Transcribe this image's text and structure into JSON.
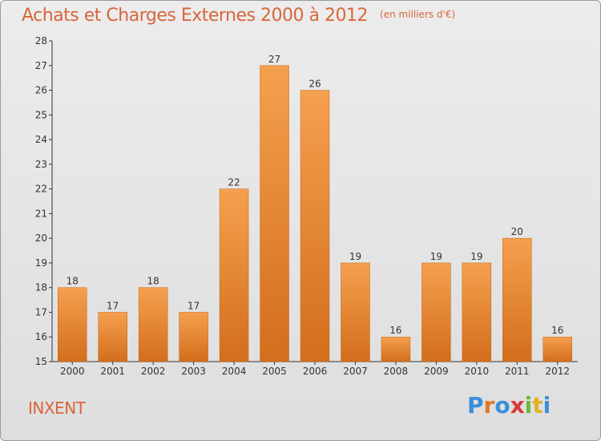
{
  "header": {
    "title": "Achats et Charges Externes 2000 à 2012",
    "unit": "(en milliers d'€)"
  },
  "footer": {
    "commune": "INXENT",
    "logo_letters": [
      "P",
      "r",
      "o",
      "x",
      "i",
      "t",
      "i"
    ]
  },
  "colors": {
    "bar_top": "#f5a04f",
    "bar_bottom": "#d26e1c",
    "text_accent": "#d8663a"
  },
  "chart_data": {
    "type": "bar",
    "title": "Achats et Charges Externes 2000 à 2012",
    "subtitle": "(en milliers d'€)",
    "categories": [
      "2000",
      "2001",
      "2002",
      "2003",
      "2004",
      "2005",
      "2006",
      "2007",
      "2008",
      "2009",
      "2010",
      "2011",
      "2012"
    ],
    "values": [
      18,
      17,
      18,
      17,
      22,
      27,
      26,
      19,
      16,
      19,
      19,
      20,
      16
    ],
    "ylim": [
      15,
      28
    ],
    "yticks": [
      15,
      16,
      17,
      18,
      19,
      20,
      21,
      22,
      23,
      24,
      25,
      26,
      27,
      28
    ],
    "grid": false,
    "data_labels": true
  }
}
